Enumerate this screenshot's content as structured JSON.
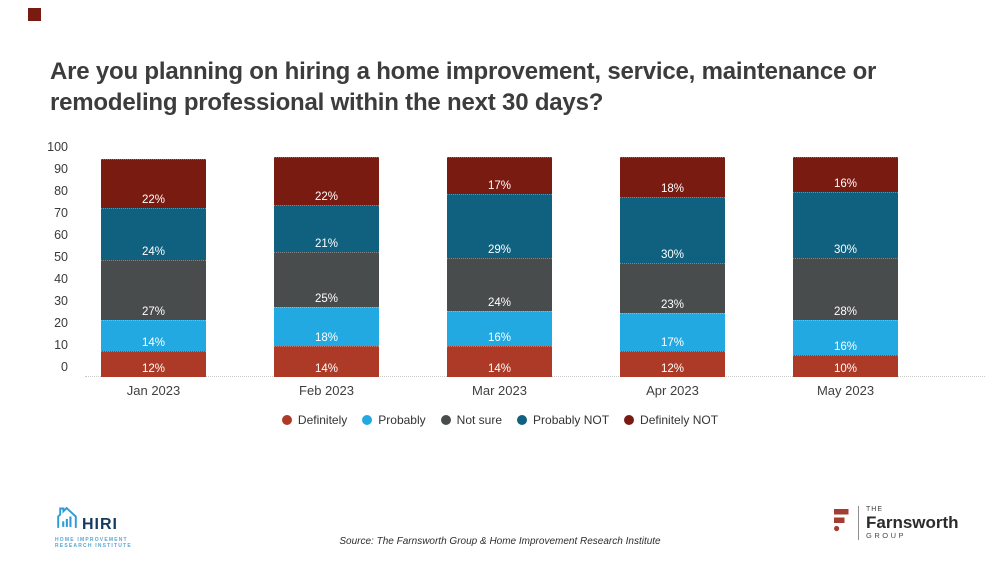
{
  "title": {
    "line1": "Are you planning on hiring a home improvement, service, maintenance or",
    "line2": "remodeling professional within the next 30 days?"
  },
  "chart_data": {
    "type": "bar",
    "stacked": true,
    "title": "Are you planning on hiring a home improvement, service, maintenance or remodeling professional within the next 30 days?",
    "categories": [
      "Jan 2023",
      "Feb 2023",
      "Mar 2023",
      "Apr 2023",
      "May 2023"
    ],
    "series": [
      {
        "name": "Definitely",
        "color": "#AD3A26",
        "values": [
          12,
          14,
          14,
          12,
          10
        ]
      },
      {
        "name": "Probably",
        "color": "#23A9E1",
        "values": [
          14,
          18,
          16,
          17,
          16
        ]
      },
      {
        "name": "Not sure",
        "color": "#484C4D",
        "values": [
          27,
          25,
          24,
          23,
          28
        ]
      },
      {
        "name": "Probably NOT",
        "color": "#10607F",
        "values": [
          24,
          21,
          29,
          30,
          30
        ]
      },
      {
        "name": "Definitely NOT",
        "color": "#7A1B12",
        "values": [
          22,
          22,
          17,
          18,
          16
        ]
      }
    ],
    "value_suffix": "%",
    "ylim": [
      0,
      100
    ],
    "yticks": [
      0,
      10,
      20,
      30,
      40,
      50,
      60,
      70,
      80,
      90,
      100
    ],
    "legend_position": "bottom",
    "grid": false
  },
  "source": "Source: The Farnsworth Group & Home Improvement Research Institute",
  "footer": {
    "hiri": {
      "name": "HIRI",
      "tagline1": "HOME IMPROVEMENT",
      "tagline2": "RESEARCH INSTITUTE",
      "icon_color": "#2E9BD6",
      "text_color": "#143A5E"
    },
    "farnsworth": {
      "the": "THE",
      "name": "Farnsworth",
      "group": "GROUP",
      "icon_color": "#A43C31"
    }
  },
  "decor": {
    "corner_square_color": "#7A1B12"
  }
}
